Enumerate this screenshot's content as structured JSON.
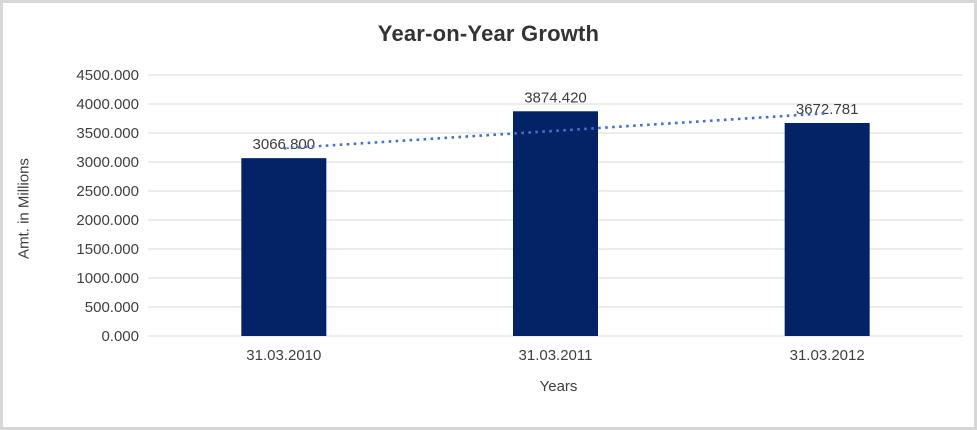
{
  "chart_data": {
    "type": "bar",
    "title": "Year-on-Year Growth",
    "categories": [
      "31.03.2010",
      "31.03.2011",
      "31.03.2012"
    ],
    "values": [
      3066.8,
      3874.42,
      3672.781
    ],
    "data_labels": [
      "3066.800",
      "3874.420",
      "3672.781"
    ],
    "xlabel": "Years",
    "ylabel": "Amt. in Millions",
    "ylim": [
      0,
      4500
    ],
    "ytick_labels": [
      "0.000",
      "500.000",
      "1000.000",
      "1500.000",
      "2000.000",
      "2500.000",
      "3000.000",
      "3500.000",
      "4000.000",
      "4500.000"
    ],
    "grid": true,
    "legend": false,
    "trendline": {
      "type": "linear",
      "style": "dotted"
    }
  },
  "colors": {
    "bar": "#042366",
    "trendline": "#4472C4",
    "gridline": "#D9D9D9",
    "tick_text": "#404040",
    "label_text": "#3d3d3d",
    "title_text": "#333333",
    "border": "#D7D7D7"
  }
}
